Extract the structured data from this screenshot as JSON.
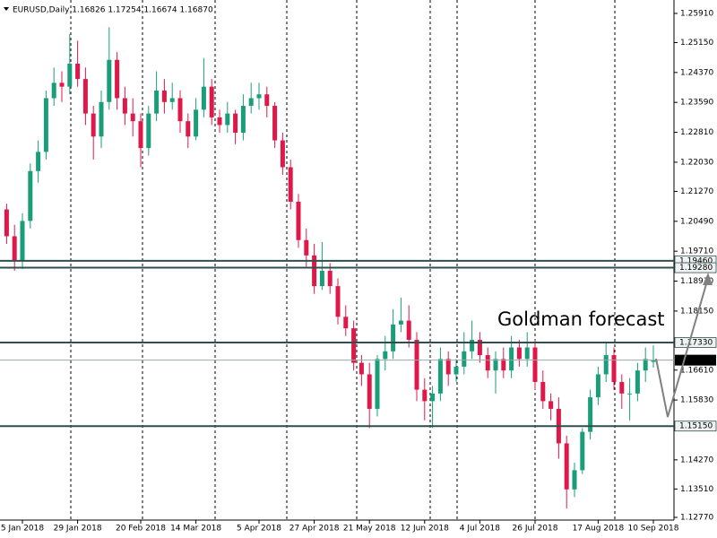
{
  "chart_data": {
    "type": "candlestick",
    "title": "EURUSD,Daily  1.16826 1.17254 1.16674 1.16870",
    "annotation": "Goldman forecast",
    "up_color": "#1a9e7a",
    "down_color": "#e0184a",
    "level_color": "#2f4f4f",
    "annotation_color": "#2a8a8a",
    "ylim": [
      1.127,
      1.2626
    ],
    "yticks": [
      {
        "value": 1.2591,
        "label": "1.25910"
      },
      {
        "value": 1.2515,
        "label": "1.25150"
      },
      {
        "value": 1.2437,
        "label": "1.24370"
      },
      {
        "value": 1.2359,
        "label": "1.23590"
      },
      {
        "value": 1.2281,
        "label": "1.22810"
      },
      {
        "value": 1.2203,
        "label": "1.22030"
      },
      {
        "value": 1.2127,
        "label": "1.21270"
      },
      {
        "value": 1.2049,
        "label": "1.20490"
      },
      {
        "value": 1.1971,
        "label": "1.19710"
      },
      {
        "value": 1.1893,
        "label": "1.18930"
      },
      {
        "value": 1.1815,
        "label": "1.18150"
      },
      {
        "value": 1.1661,
        "label": "1.16610"
      },
      {
        "value": 1.1583,
        "label": "1.15830"
      },
      {
        "value": 1.1427,
        "label": "1.14270"
      },
      {
        "value": 1.1351,
        "label": "1.13510"
      },
      {
        "value": 1.1277,
        "label": "1.12770"
      }
    ],
    "levels": [
      {
        "value": 1.1946,
        "label": "1.19460"
      },
      {
        "value": 1.1928,
        "label": "1.19280"
      },
      {
        "value": 1.1733,
        "label": "1.17330"
      },
      {
        "value": 1.1515,
        "label": "1.15150"
      }
    ],
    "current_price": {
      "value": 1.1687,
      "label": "1.16870"
    },
    "categories": [
      null,
      null,
      "5 Jan 2018",
      null,
      null,
      null,
      null,
      null,
      null,
      "29 Jan 2018",
      null,
      null,
      null,
      null,
      null,
      null,
      null,
      "20 Feb 2018",
      null,
      null,
      null,
      null,
      null,
      null,
      "14 Mar 2018",
      null,
      null,
      null,
      null,
      null,
      null,
      null,
      "5 Apr 2018",
      null,
      null,
      null,
      null,
      null,
      null,
      "27 Apr 2018",
      null,
      null,
      null,
      null,
      null,
      null,
      "21 May 2018",
      null,
      null,
      null,
      null,
      null,
      null,
      "12 Jun 2018",
      null,
      null,
      null,
      null,
      null,
      null,
      "4 Jul 2018",
      null,
      null,
      null,
      null,
      null,
      null,
      "26 Jul 2018",
      null,
      null,
      null,
      null,
      null,
      null,
      null,
      "17 Aug 2018",
      null,
      null,
      null,
      null,
      null,
      null,
      "10 Sep 2018"
    ],
    "candles": [
      [
        1.208,
        1.2095,
        1.199,
        1.201
      ],
      [
        1.201,
        1.204,
        1.192,
        1.1945
      ],
      [
        1.1945,
        1.207,
        1.1925,
        1.205
      ],
      [
        1.205,
        1.22,
        1.203,
        1.218
      ],
      [
        1.218,
        1.226,
        1.215,
        1.223
      ],
      [
        1.223,
        1.239,
        1.221,
        1.237
      ],
      [
        1.237,
        1.245,
        1.235,
        1.241
      ],
      [
        1.241,
        1.244,
        1.236,
        1.24
      ],
      [
        1.24,
        1.2537,
        1.238,
        1.246
      ],
      [
        1.246,
        1.252,
        1.24,
        1.242
      ],
      [
        1.242,
        1.245,
        1.23,
        1.233
      ],
      [
        1.233,
        1.235,
        1.221,
        1.227
      ],
      [
        1.227,
        1.239,
        1.224,
        1.236
      ],
      [
        1.236,
        1.2555,
        1.234,
        1.247
      ],
      [
        1.247,
        1.249,
        1.234,
        1.237
      ],
      [
        1.237,
        1.24,
        1.23,
        1.233
      ],
      [
        1.233,
        1.237,
        1.227,
        1.231
      ],
      [
        1.231,
        1.233,
        1.219,
        1.224
      ],
      [
        1.224,
        1.235,
        1.222,
        1.233
      ],
      [
        1.233,
        1.244,
        1.231,
        1.239
      ],
      [
        1.239,
        1.242,
        1.233,
        1.236
      ],
      [
        1.236,
        1.241,
        1.234,
        1.237
      ],
      [
        1.237,
        1.239,
        1.228,
        1.231
      ],
      [
        1.231,
        1.233,
        1.224,
        1.227
      ],
      [
        1.227,
        1.237,
        1.226,
        1.234
      ],
      [
        1.234,
        1.2475,
        1.232,
        1.24
      ],
      [
        1.24,
        1.242,
        1.23,
        1.232
      ],
      [
        1.232,
        1.234,
        1.228,
        1.23
      ],
      [
        1.23,
        1.236,
        1.228,
        1.233
      ],
      [
        1.233,
        1.234,
        1.225,
        1.228
      ],
      [
        1.228,
        1.238,
        1.226,
        1.235
      ],
      [
        1.235,
        1.241,
        1.233,
        1.237
      ],
      [
        1.237,
        1.241,
        1.234,
        1.238
      ],
      [
        1.238,
        1.24,
        1.232,
        1.235
      ],
      [
        1.235,
        1.236,
        1.224,
        1.226
      ],
      [
        1.226,
        1.228,
        1.217,
        1.219
      ],
      [
        1.219,
        1.221,
        1.208,
        1.21
      ],
      [
        1.21,
        1.212,
        1.198,
        1.2
      ],
      [
        1.2,
        1.203,
        1.193,
        1.196
      ],
      [
        1.196,
        1.199,
        1.186,
        1.188
      ],
      [
        1.188,
        1.1995,
        1.187,
        1.192
      ],
      [
        1.192,
        1.194,
        1.186,
        1.188
      ],
      [
        1.188,
        1.19,
        1.178,
        1.18
      ],
      [
        1.18,
        1.183,
        1.175,
        1.177
      ],
      [
        1.177,
        1.179,
        1.166,
        1.168
      ],
      [
        1.168,
        1.17,
        1.162,
        1.165
      ],
      [
        1.165,
        1.168,
        1.151,
        1.156
      ],
      [
        1.156,
        1.17,
        1.154,
        1.169
      ],
      [
        1.169,
        1.175,
        1.166,
        1.171
      ],
      [
        1.171,
        1.182,
        1.169,
        1.178
      ],
      [
        1.178,
        1.185,
        1.176,
        1.179
      ],
      [
        1.179,
        1.183,
        1.172,
        1.174
      ],
      [
        1.174,
        1.176,
        1.158,
        1.161
      ],
      [
        1.161,
        1.164,
        1.153,
        1.158
      ],
      [
        1.158,
        1.162,
        1.151,
        1.16
      ],
      [
        1.16,
        1.172,
        1.158,
        1.169
      ],
      [
        1.169,
        1.171,
        1.162,
        1.165
      ],
      [
        1.165,
        1.169,
        1.163,
        1.167
      ],
      [
        1.167,
        1.176,
        1.165,
        1.171
      ],
      [
        1.171,
        1.179,
        1.169,
        1.174
      ],
      [
        1.174,
        1.176,
        1.168,
        1.17
      ],
      [
        1.17,
        1.172,
        1.164,
        1.166
      ],
      [
        1.166,
        1.171,
        1.16,
        1.169
      ],
      [
        1.169,
        1.172,
        1.164,
        1.166
      ],
      [
        1.166,
        1.175,
        1.164,
        1.172
      ],
      [
        1.172,
        1.174,
        1.167,
        1.169
      ],
      [
        1.169,
        1.176,
        1.167,
        1.172
      ],
      [
        1.172,
        1.174,
        1.161,
        1.163
      ],
      [
        1.163,
        1.166,
        1.156,
        1.158
      ],
      [
        1.158,
        1.16,
        1.153,
        1.156
      ],
      [
        1.156,
        1.159,
        1.143,
        1.147
      ],
      [
        1.147,
        1.149,
        1.13,
        1.135
      ],
      [
        1.135,
        1.142,
        1.133,
        1.14
      ],
      [
        1.14,
        1.151,
        1.139,
        1.15
      ],
      [
        1.15,
        1.161,
        1.148,
        1.159
      ],
      [
        1.159,
        1.167,
        1.157,
        1.165
      ],
      [
        1.165,
        1.1735,
        1.163,
        1.17
      ],
      [
        1.17,
        1.172,
        1.161,
        1.163
      ],
      [
        1.163,
        1.165,
        1.156,
        1.16
      ],
      [
        1.16,
        1.164,
        1.153,
        1.16
      ],
      [
        1.16,
        1.168,
        1.158,
        1.166
      ],
      [
        1.166,
        1.172,
        1.163,
        1.169
      ],
      [
        1.16826,
        1.17254,
        1.16674,
        1.1687
      ]
    ]
  }
}
